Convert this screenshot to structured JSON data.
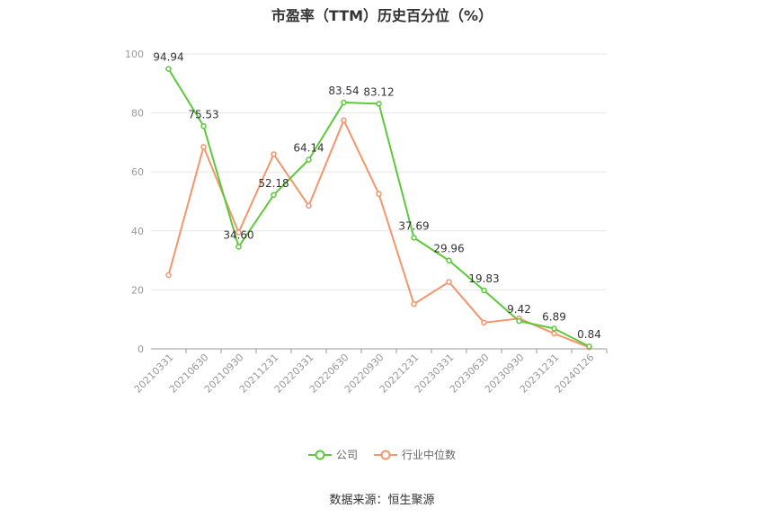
{
  "chart_data": {
    "type": "line",
    "title": "市盈率（TTM）历史百分位（%）",
    "categories": [
      "20210331",
      "20210630",
      "20210930",
      "20211231",
      "20220331",
      "20220630",
      "20220930",
      "20221231",
      "20230331",
      "20230630",
      "20230930",
      "20231231",
      "20240126"
    ],
    "ylim": [
      0,
      100
    ],
    "yticks": [
      0,
      20,
      40,
      60,
      80,
      100
    ],
    "grid": true,
    "legend_position": "bottom",
    "series": [
      {
        "name": "公司",
        "color": "#5cc93a",
        "values": [
          94.94,
          75.53,
          34.6,
          52.18,
          64.14,
          83.54,
          83.12,
          37.69,
          29.96,
          19.83,
          9.42,
          6.89,
          0.84
        ],
        "labels": [
          "94.94",
          "75.53",
          "34.60",
          "52.18",
          "64.14",
          "83.54",
          "83.12",
          "37.69",
          "29.96",
          "19.83",
          "9.42",
          "6.89",
          "0.84"
        ]
      },
      {
        "name": "行业中位数",
        "color": "#f4956b",
        "values": [
          25.0,
          68.5,
          39.5,
          66.0,
          48.5,
          77.5,
          52.5,
          15.2,
          22.7,
          8.9,
          10.3,
          5.2,
          0.5
        ]
      }
    ]
  },
  "source": "数据来源：恒生聚源"
}
